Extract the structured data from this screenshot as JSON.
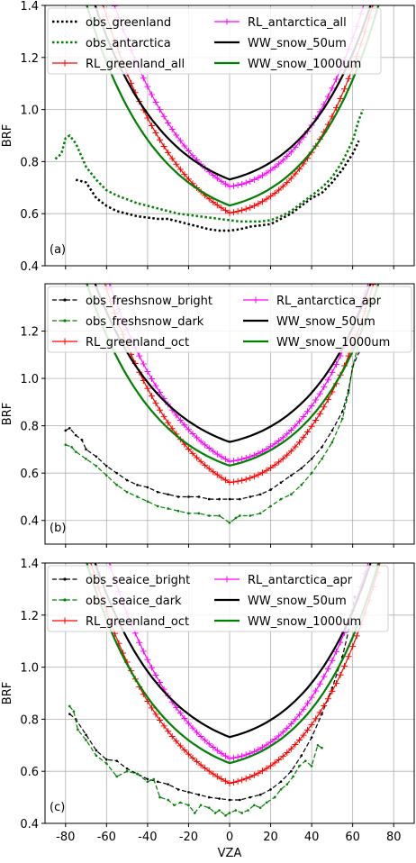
{
  "chart_data": [
    {
      "type": "line",
      "panel_label": "(a)",
      "ylabel": "BRF",
      "xlabel": "",
      "xlim": [
        -90,
        90
      ],
      "ylim": [
        0.4,
        1.4
      ],
      "xticks": [
        -80,
        -60,
        -40,
        -20,
        0,
        20,
        40,
        60,
        80
      ],
      "yticks": [
        "0.4",
        "0.6",
        "0.8",
        "1.0",
        "1.2",
        "1.4"
      ],
      "show_xtick_labels": false,
      "grid": true,
      "legend": "top-left, two columns",
      "series": [
        {
          "name": "obs_greenland",
          "style": "dotted",
          "marker": "none",
          "color": "#000000",
          "lw": 2.5,
          "points": [
            [
              -75,
              0.73
            ],
            [
              -70,
              0.72
            ],
            [
              -65,
              0.66
            ],
            [
              -60,
              0.63
            ],
            [
              -55,
              0.61
            ],
            [
              -50,
              0.6
            ],
            [
              -45,
              0.59
            ],
            [
              -40,
              0.585
            ],
            [
              -35,
              0.58
            ],
            [
              -30,
              0.58
            ],
            [
              -25,
              0.57
            ],
            [
              -20,
              0.56
            ],
            [
              -15,
              0.55
            ],
            [
              -10,
              0.54
            ],
            [
              -5,
              0.535
            ],
            [
              0,
              0.535
            ],
            [
              5,
              0.54
            ],
            [
              10,
              0.55
            ],
            [
              15,
              0.555
            ],
            [
              20,
              0.56
            ],
            [
              25,
              0.58
            ],
            [
              30,
              0.6
            ],
            [
              35,
              0.63
            ],
            [
              40,
              0.66
            ],
            [
              45,
              0.68
            ],
            [
              50,
              0.72
            ],
            [
              55,
              0.77
            ],
            [
              60,
              0.83
            ],
            [
              63,
              0.88
            ]
          ]
        },
        {
          "name": "obs_antarctica",
          "style": "dotted",
          "marker": "none",
          "color": "#008000",
          "lw": 2.5,
          "points": [
            [
              -85,
              0.81
            ],
            [
              -82,
              0.83
            ],
            [
              -80,
              0.89
            ],
            [
              -78,
              0.9
            ],
            [
              -75,
              0.87
            ],
            [
              -70,
              0.78
            ],
            [
              -65,
              0.73
            ],
            [
              -60,
              0.69
            ],
            [
              -55,
              0.67
            ],
            [
              -50,
              0.655
            ],
            [
              -45,
              0.64
            ],
            [
              -40,
              0.63
            ],
            [
              -35,
              0.62
            ],
            [
              -30,
              0.61
            ],
            [
              -25,
              0.6
            ],
            [
              -20,
              0.595
            ],
            [
              -15,
              0.59
            ],
            [
              -10,
              0.585
            ],
            [
              -5,
              0.58
            ],
            [
              0,
              0.575
            ],
            [
              5,
              0.57
            ],
            [
              10,
              0.57
            ],
            [
              15,
              0.57
            ],
            [
              20,
              0.575
            ],
            [
              25,
              0.59
            ],
            [
              30,
              0.61
            ],
            [
              35,
              0.64
            ],
            [
              40,
              0.67
            ],
            [
              45,
              0.7
            ],
            [
              50,
              0.74
            ],
            [
              55,
              0.8
            ],
            [
              60,
              0.88
            ],
            [
              63,
              0.96
            ],
            [
              65,
              1.0
            ]
          ]
        },
        {
          "name": "RL_greenland_all",
          "style": "solid",
          "marker": "plus",
          "color": "#ff0000",
          "lw": 1.2,
          "curve": [
            0.5,
            15,
            5.5e-05,
            1.0,
            0.03,
            0.00053,
            80
          ]
        },
        {
          "name": "RL_antarctica_all",
          "style": "solid",
          "marker": "plus",
          "color": "#ff00ff",
          "lw": 1.2,
          "curve": [
            0.6,
            15,
            6.18e-05,
            1.0,
            0.03,
            0.00053,
            80
          ]
        },
        {
          "name": "WW_snow_50um",
          "style": "solid",
          "marker": "none",
          "color": "#000000",
          "lw": 2.2,
          "curve": [
            0.65,
            15,
            1.85e-05,
            1.0,
            0.032,
            0.0005,
            80
          ]
        },
        {
          "name": "WW_snow_1000um",
          "style": "solid",
          "marker": "none",
          "color": "#008000",
          "lw": 2.2,
          "curve": [
            0.55,
            15,
            1.85e-05,
            1.0,
            0.032,
            0.00045,
            80
          ]
        }
      ]
    },
    {
      "type": "line",
      "panel_label": "(b)",
      "ylabel": "BRF",
      "xlabel": "",
      "xlim": [
        -90,
        90
      ],
      "ylim": [
        0.3,
        1.4
      ],
      "xticks": [
        -80,
        -60,
        -40,
        -20,
        0,
        20,
        40,
        60,
        80
      ],
      "yticks": [
        "0.4",
        "0.6",
        "0.8",
        "1.0",
        "1.2"
      ],
      "show_xtick_labels": false,
      "grid": true,
      "legend": "top-left, two columns",
      "series": [
        {
          "name": "obs_freshsnow_bright",
          "style": "dashed",
          "marker": "dot",
          "color": "#000000",
          "lw": 1.2,
          "points": [
            [
              -80,
              0.78
            ],
            [
              -78,
              0.79
            ],
            [
              -75,
              0.76
            ],
            [
              -72,
              0.74
            ],
            [
              -70,
              0.7
            ],
            [
              -65,
              0.67
            ],
            [
              -60,
              0.63
            ],
            [
              -55,
              0.6
            ],
            [
              -50,
              0.57
            ],
            [
              -45,
              0.55
            ],
            [
              -40,
              0.54
            ],
            [
              -35,
              0.52
            ],
            [
              -30,
              0.51
            ],
            [
              -25,
              0.5
            ],
            [
              -20,
              0.5
            ],
            [
              -15,
              0.5
            ],
            [
              -10,
              0.49
            ],
            [
              -5,
              0.49
            ],
            [
              0,
              0.49
            ],
            [
              5,
              0.49
            ],
            [
              10,
              0.5
            ],
            [
              15,
              0.51
            ],
            [
              20,
              0.53
            ],
            [
              25,
              0.56
            ],
            [
              30,
              0.59
            ],
            [
              35,
              0.62
            ],
            [
              40,
              0.66
            ],
            [
              45,
              0.71
            ],
            [
              50,
              0.78
            ],
            [
              55,
              0.86
            ],
            [
              58,
              0.95
            ],
            [
              60,
              1.05
            ],
            [
              63,
              1.11
            ]
          ]
        },
        {
          "name": "obs_freshsnow_dark",
          "style": "dashed",
          "marker": "dot",
          "color": "#008000",
          "lw": 1.2,
          "points": [
            [
              -80,
              0.72
            ],
            [
              -77,
              0.71
            ],
            [
              -75,
              0.69
            ],
            [
              -70,
              0.66
            ],
            [
              -65,
              0.63
            ],
            [
              -60,
              0.59
            ],
            [
              -55,
              0.55
            ],
            [
              -50,
              0.52
            ],
            [
              -45,
              0.5
            ],
            [
              -40,
              0.48
            ],
            [
              -35,
              0.46
            ],
            [
              -30,
              0.45
            ],
            [
              -25,
              0.44
            ],
            [
              -20,
              0.43
            ],
            [
              -15,
              0.43
            ],
            [
              -10,
              0.42
            ],
            [
              -5,
              0.42
            ],
            [
              0,
              0.39
            ],
            [
              3,
              0.41
            ],
            [
              5,
              0.42
            ],
            [
              10,
              0.42
            ],
            [
              15,
              0.43
            ],
            [
              20,
              0.46
            ],
            [
              25,
              0.49
            ],
            [
              30,
              0.51
            ],
            [
              35,
              0.55
            ],
            [
              40,
              0.6
            ],
            [
              45,
              0.66
            ],
            [
              50,
              0.73
            ],
            [
              55,
              0.83
            ],
            [
              58,
              0.94
            ],
            [
              60,
              1.05
            ],
            [
              63,
              1.15
            ]
          ]
        },
        {
          "name": "RL_greenland_oct",
          "style": "solid",
          "marker": "plus",
          "color": "#ff0000",
          "lw": 1.2,
          "curve": [
            0.455,
            15,
            6.65e-05,
            1.0,
            0.03,
            0.00053,
            80
          ]
        },
        {
          "name": "RL_antarctica_apr",
          "style": "solid",
          "marker": "plus",
          "color": "#ff00ff",
          "lw": 1.2,
          "curve": [
            0.545,
            15,
            6.04e-05,
            1.0,
            0.03,
            0.00053,
            80
          ]
        },
        {
          "name": "WW_snow_50um",
          "style": "solid",
          "marker": "none",
          "color": "#000000",
          "lw": 2.2,
          "curve": [
            0.65,
            15,
            1.85e-05,
            1.0,
            0.032,
            0.0005,
            80
          ]
        },
        {
          "name": "WW_snow_1000um",
          "style": "solid",
          "marker": "none",
          "color": "#008000",
          "lw": 2.2,
          "curve": [
            0.55,
            15,
            1.85e-05,
            1.0,
            0.032,
            0.00045,
            80
          ]
        }
      ]
    },
    {
      "type": "line",
      "panel_label": "(c)",
      "ylabel": "BRF",
      "xlabel": "VZA",
      "xlim": [
        -90,
        90
      ],
      "ylim": [
        0.4,
        1.4
      ],
      "xticks": [
        -80,
        -60,
        -40,
        -20,
        0,
        20,
        40,
        60,
        80
      ],
      "yticks": [
        "0.4",
        "0.6",
        "0.8",
        "1.0",
        "1.2",
        "1.4"
      ],
      "show_xtick_labels": true,
      "grid": true,
      "legend": "top-left, two columns",
      "series": [
        {
          "name": "obs_seaice_bright",
          "style": "dashed",
          "marker": "dot",
          "color": "#000000",
          "lw": 1.2,
          "points": [
            [
              -78,
              0.82
            ],
            [
              -75,
              0.8
            ],
            [
              -70,
              0.74
            ],
            [
              -65,
              0.68
            ],
            [
              -60,
              0.645
            ],
            [
              -55,
              0.64
            ],
            [
              -50,
              0.61
            ],
            [
              -45,
              0.59
            ],
            [
              -40,
              0.57
            ],
            [
              -35,
              0.56
            ],
            [
              -30,
              0.55
            ],
            [
              -25,
              0.53
            ],
            [
              -20,
              0.52
            ],
            [
              -15,
              0.51
            ],
            [
              -10,
              0.5
            ],
            [
              -5,
              0.495
            ],
            [
              0,
              0.49
            ],
            [
              5,
              0.49
            ],
            [
              10,
              0.5
            ],
            [
              15,
              0.51
            ],
            [
              20,
              0.53
            ],
            [
              25,
              0.56
            ],
            [
              30,
              0.6
            ],
            [
              35,
              0.66
            ],
            [
              40,
              0.73
            ],
            [
              45,
              0.82
            ],
            [
              50,
              0.92
            ],
            [
              55,
              1.04
            ],
            [
              58,
              1.14
            ],
            [
              61,
              1.27
            ]
          ]
        },
        {
          "name": "obs_seaice_dark",
          "style": "dashed",
          "marker": "dot",
          "color": "#008000",
          "lw": 1.2,
          "points": [
            [
              -78,
              0.85
            ],
            [
              -76,
              0.83
            ],
            [
              -74,
              0.76
            ],
            [
              -70,
              0.72
            ],
            [
              -65,
              0.66
            ],
            [
              -60,
              0.63
            ],
            [
              -55,
              0.58
            ],
            [
              -50,
              0.6
            ],
            [
              -45,
              0.59
            ],
            [
              -40,
              0.56
            ],
            [
              -37,
              0.57
            ],
            [
              -34,
              0.5
            ],
            [
              -30,
              0.49
            ],
            [
              -27,
              0.47
            ],
            [
              -24,
              0.48
            ],
            [
              -20,
              0.47
            ],
            [
              -17,
              0.44
            ],
            [
              -14,
              0.47
            ],
            [
              -10,
              0.46
            ],
            [
              -7,
              0.44
            ],
            [
              -5,
              0.45
            ],
            [
              -2,
              0.43
            ],
            [
              0,
              0.44
            ],
            [
              3,
              0.45
            ],
            [
              6,
              0.44
            ],
            [
              9,
              0.45
            ],
            [
              12,
              0.47
            ],
            [
              15,
              0.46
            ],
            [
              18,
              0.48
            ],
            [
              22,
              0.5
            ],
            [
              25,
              0.53
            ],
            [
              28,
              0.55
            ],
            [
              31,
              0.58
            ],
            [
              34,
              0.62
            ],
            [
              37,
              0.64
            ],
            [
              40,
              0.62
            ],
            [
              43,
              0.7
            ],
            [
              45,
              0.69
            ]
          ]
        },
        {
          "name": "RL_greenland_oct",
          "style": "solid",
          "marker": "plus",
          "color": "#ff0000",
          "lw": 1.2,
          "curve": [
            0.455,
            15,
            3.73e-05,
            1.0,
            0.03,
            0.00053,
            80
          ]
        },
        {
          "name": "RL_antarctica_apr",
          "style": "solid",
          "marker": "plus",
          "color": "#ff00ff",
          "lw": 1.2,
          "curve": [
            0.545,
            15,
            6.04e-05,
            1.0,
            0.03,
            0.00053,
            80
          ]
        },
        {
          "name": "WW_snow_50um",
          "style": "solid",
          "marker": "none",
          "color": "#000000",
          "lw": 2.2,
          "curve": [
            0.65,
            15,
            1.85e-05,
            1.0,
            0.032,
            0.0005,
            80
          ]
        },
        {
          "name": "WW_snow_1000um",
          "style": "solid",
          "marker": "none",
          "color": "#008000",
          "lw": 2.2,
          "curve": [
            0.55,
            15,
            1.85e-05,
            1.0,
            0.032,
            0.00045,
            80
          ]
        }
      ]
    }
  ]
}
